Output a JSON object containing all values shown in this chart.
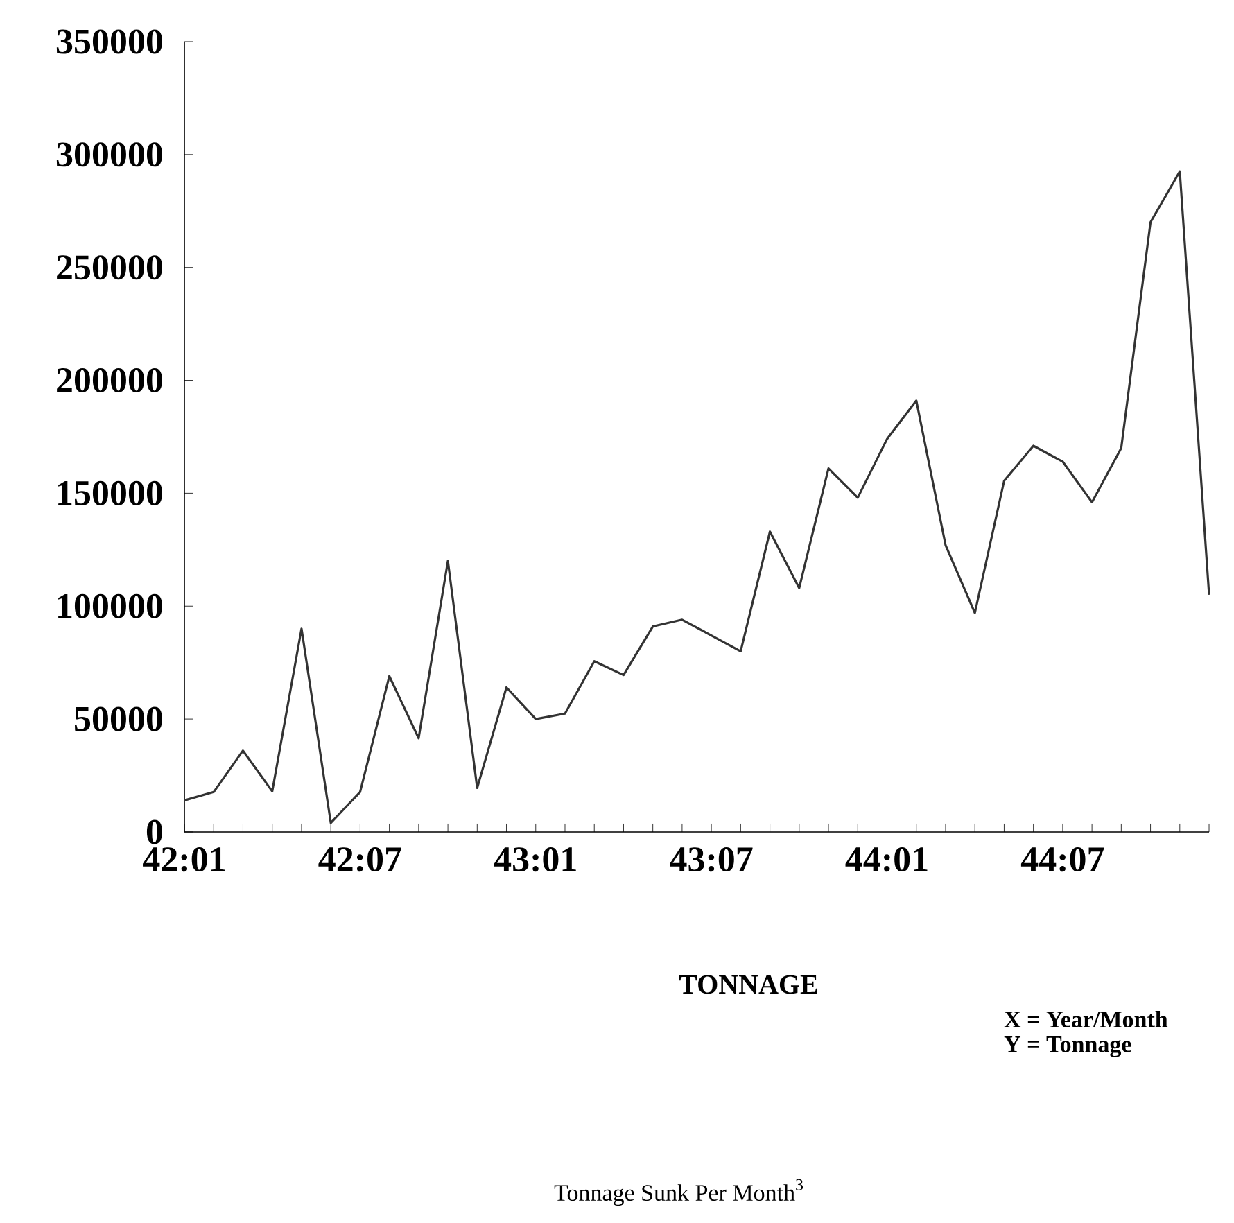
{
  "chart_data": {
    "type": "line",
    "title": "Tonnage Sunk Per Month$^{3}$",
    "annotations": [
      "TONNAGE",
      "X = Year/Month",
      "Y = Tonnage"
    ],
    "categories": [
      "42:01",
      null,
      null,
      null,
      null,
      null,
      "42:07",
      null,
      null,
      null,
      null,
      null,
      "43:01",
      null,
      null,
      null,
      null,
      null,
      "43:07",
      null,
      null,
      null,
      null,
      null,
      "44:01",
      null,
      null,
      null,
      null,
      null,
      "44:07",
      null,
      null,
      null,
      null,
      null
    ],
    "values": [
      14000,
      17700,
      36000,
      18000,
      90000,
      4000,
      17700,
      69000,
      41500,
      120000,
      19500,
      64000,
      50000,
      52400,
      75600,
      69500,
      91000,
      94000,
      87000,
      80000,
      133000,
      108000,
      161000,
      148000,
      174000,
      191000,
      127000,
      97000,
      155500,
      171000,
      164000,
      146000,
      170000,
      270000,
      292500,
      105000
    ],
    "color": "#333333",
    "ylim": [
      0,
      350000
    ],
    "yticks": [
      0,
      50000,
      100000,
      150000,
      200000,
      250000,
      300000,
      350000
    ],
    "grid": false
  }
}
